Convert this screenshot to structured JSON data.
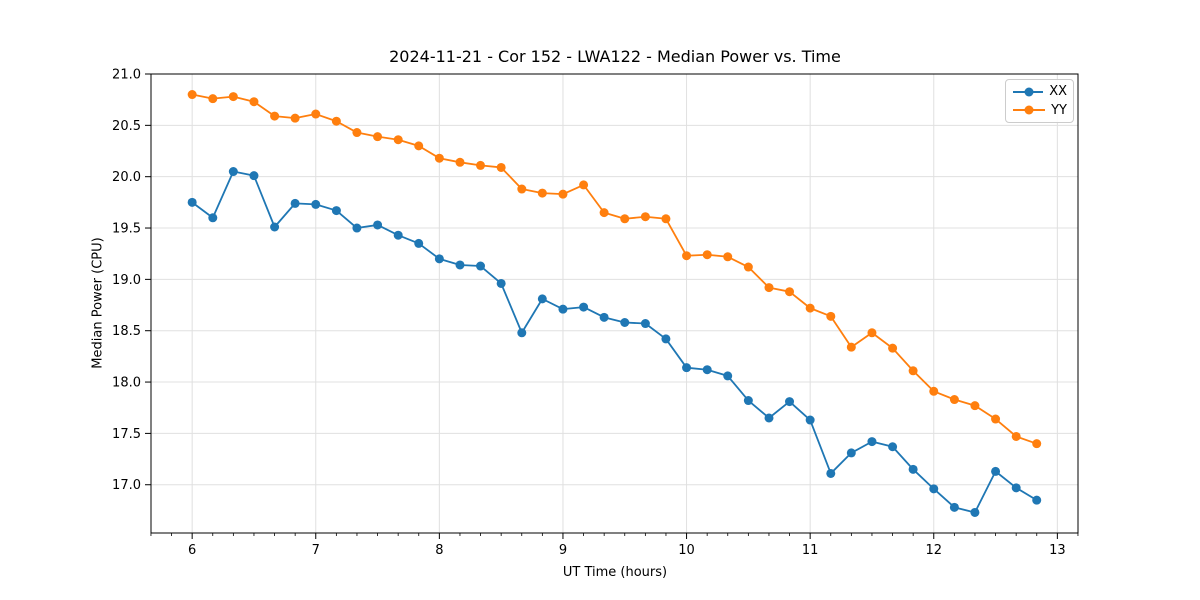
{
  "chart_data": {
    "type": "line",
    "title": "2024-11-21 - Cor 152 - LWA122 - Median Power vs. Time",
    "xlabel": "UT Time (hours)",
    "ylabel": "Median Power (CPU)",
    "xlim": [
      5.667,
      13.167
    ],
    "ylim": [
      16.53,
      21.0
    ],
    "x_major_ticks": [
      6,
      7,
      8,
      9,
      10,
      11,
      12,
      13
    ],
    "y_major_ticks": [
      17.0,
      17.5,
      18.0,
      18.5,
      19.0,
      19.5,
      20.0,
      20.5,
      21.0
    ],
    "x_minor_tick_step": 0.1667,
    "grid": "major-only",
    "legend_position": "upper-right",
    "x": [
      6.0,
      6.167,
      6.333,
      6.5,
      6.667,
      6.833,
      7.0,
      7.167,
      7.333,
      7.5,
      7.667,
      7.833,
      8.0,
      8.167,
      8.333,
      8.5,
      8.667,
      8.833,
      9.0,
      9.167,
      9.333,
      9.5,
      9.667,
      9.833,
      10.0,
      10.167,
      10.333,
      10.5,
      10.667,
      10.833,
      11.0,
      11.167,
      11.333,
      11.5,
      11.667,
      11.833,
      12.0,
      12.167,
      12.333,
      12.5,
      12.667,
      12.833
    ],
    "series": [
      {
        "name": "XX",
        "color": "#1f77b4",
        "values": [
          19.75,
          19.6,
          20.05,
          20.01,
          19.51,
          19.74,
          19.73,
          19.67,
          19.5,
          19.53,
          19.43,
          19.35,
          19.2,
          19.14,
          19.13,
          18.96,
          18.48,
          18.81,
          18.71,
          18.73,
          18.63,
          18.58,
          18.57,
          18.42,
          18.14,
          18.12,
          18.06,
          17.82,
          17.65,
          17.81,
          17.63,
          17.11,
          17.31,
          17.42,
          17.37,
          17.15,
          16.96,
          16.78,
          16.73,
          17.13,
          16.97,
          16.85
        ]
      },
      {
        "name": "YY",
        "color": "#ff7f0e",
        "values": [
          20.8,
          20.76,
          20.78,
          20.73,
          20.59,
          20.57,
          20.61,
          20.54,
          20.43,
          20.39,
          20.36,
          20.3,
          20.18,
          20.14,
          20.11,
          20.09,
          19.88,
          19.84,
          19.83,
          19.92,
          19.65,
          19.59,
          19.61,
          19.59,
          19.23,
          19.24,
          19.22,
          19.12,
          18.92,
          18.88,
          18.72,
          18.64,
          18.34,
          18.48,
          18.33,
          18.11,
          17.91,
          17.83,
          17.77,
          17.64,
          17.47,
          17.4
        ]
      }
    ]
  },
  "colors": {
    "grid": "#e0e0e0",
    "spine": "#000000",
    "background": "#ffffff",
    "legend_border": "#cccccc"
  }
}
